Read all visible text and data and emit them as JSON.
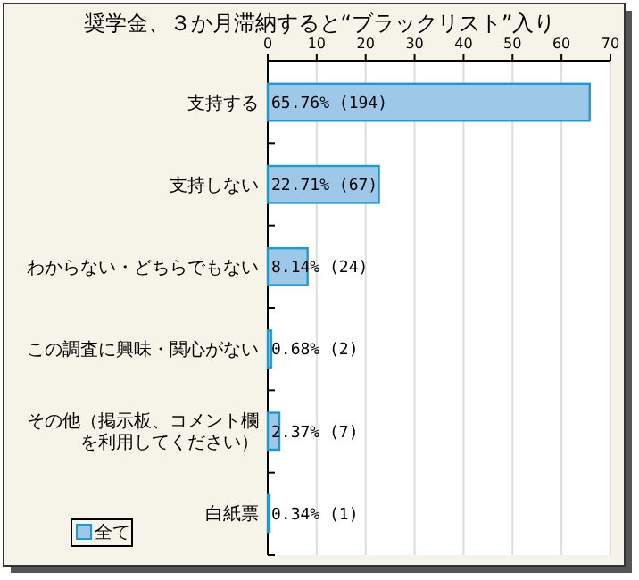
{
  "chart_data": {
    "type": "bar",
    "orientation": "horizontal",
    "title": "奨学金、３か月滞納すると“ブラックリスト”入り",
    "categories": [
      "支持する",
      "支持しない",
      "わからない・どちらでもない",
      "この調査に興味・関心がない",
      "その他（掲示板、コメント欄を利用してください）",
      "白紙票"
    ],
    "series": [
      {
        "name": "全て",
        "color": "#9ec8e8",
        "values": [
          65.76,
          22.71,
          8.14,
          0.68,
          2.37,
          0.34
        ],
        "value_labels": [
          "65.76% (194)",
          "22.71% (67)",
          "8.14% (24)",
          "0.68% (2)",
          "2.37% (7)",
          "0.34% (1)"
        ]
      }
    ],
    "xlim": [
      0,
      70
    ],
    "xticks": [
      0,
      10,
      20,
      30,
      40,
      50,
      60,
      70
    ],
    "grid": "x",
    "legend": "bottom left"
  }
}
